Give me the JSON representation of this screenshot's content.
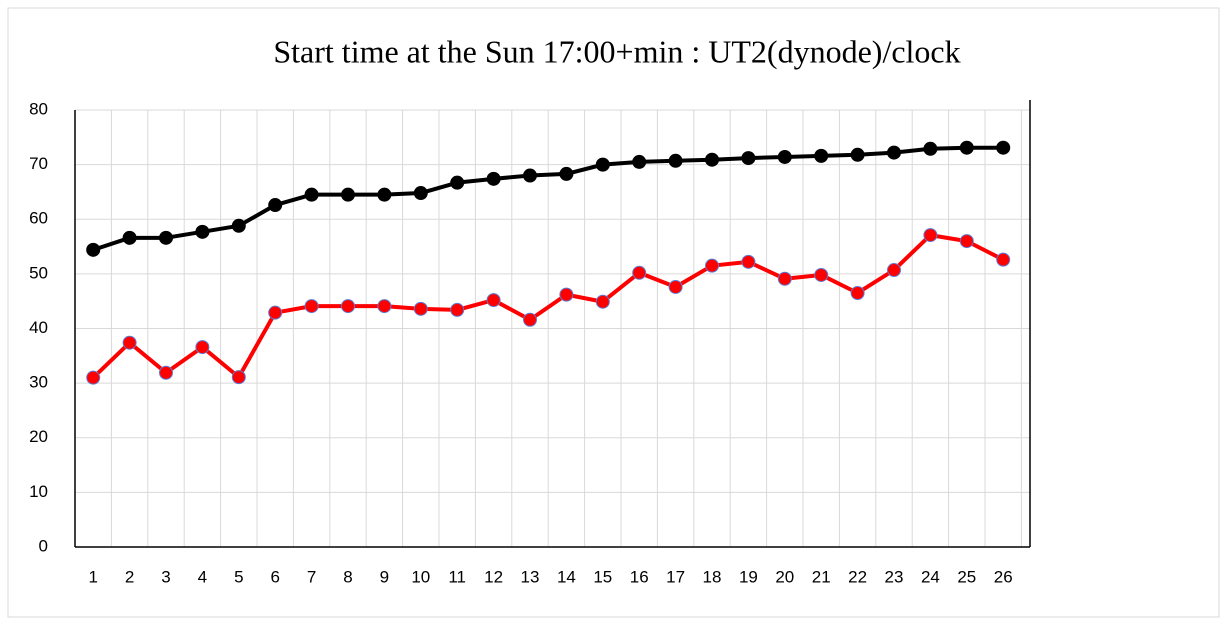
{
  "chart_data": {
    "type": "line",
    "title": "Start time at the Sun 17:00+min :  UT2(dynode)/clock",
    "categories": [
      1,
      2,
      3,
      4,
      5,
      6,
      7,
      8,
      9,
      10,
      11,
      12,
      13,
      14,
      15,
      16,
      17,
      18,
      19,
      20,
      21,
      22,
      23,
      24,
      25,
      26
    ],
    "series": [
      {
        "color": "#000000",
        "values": [
          54.4,
          56.6,
          56.6,
          57.7,
          58.8,
          62.6,
          64.5,
          64.5,
          64.5,
          64.8,
          66.7,
          67.4,
          68.0,
          68.3,
          70.0,
          70.5,
          70.7,
          70.9,
          71.2,
          71.4,
          71.6,
          71.8,
          72.2,
          72.9,
          73.1,
          73.1
        ]
      },
      {
        "color": "#ff0000",
        "values": [
          31.0,
          37.4,
          31.9,
          36.6,
          31.1,
          42.9,
          44.1,
          44.1,
          44.1,
          43.6,
          43.4,
          45.2,
          41.6,
          46.2,
          44.9,
          50.2,
          47.6,
          51.5,
          52.2,
          49.1,
          49.8,
          46.5,
          50.7,
          57.1,
          56.0,
          52.6
        ]
      }
    ],
    "ylim": [
      0,
      80
    ],
    "yticks": [
      0,
      10,
      20,
      30,
      40,
      50,
      60,
      70,
      80
    ],
    "grid": true
  }
}
